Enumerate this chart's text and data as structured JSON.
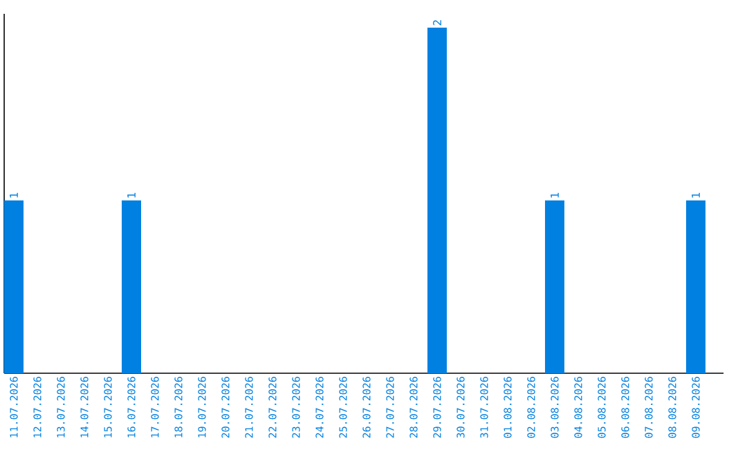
{
  "chart_data": {
    "type": "bar",
    "categories": [
      "11.07.2026",
      "12.07.2026",
      "13.07.2026",
      "14.07.2026",
      "15.07.2026",
      "16.07.2026",
      "17.07.2026",
      "18.07.2026",
      "19.07.2026",
      "20.07.2026",
      "21.07.2026",
      "22.07.2026",
      "23.07.2026",
      "24.07.2026",
      "25.07.2026",
      "26.07.2026",
      "27.07.2026",
      "28.07.2026",
      "29.07.2026",
      "30.07.2026",
      "31.07.2026",
      "01.08.2026",
      "02.08.2026",
      "03.08.2026",
      "04.08.2026",
      "05.08.2026",
      "06.08.2026",
      "07.08.2026",
      "08.08.2026",
      "09.08.2026"
    ],
    "values": [
      1,
      0,
      0,
      0,
      0,
      1,
      0,
      0,
      0,
      0,
      0,
      0,
      0,
      0,
      0,
      0,
      0,
      0,
      2,
      0,
      0,
      0,
      0,
      1,
      0,
      0,
      0,
      0,
      0,
      1
    ],
    "value_labels": [
      "1",
      null,
      null,
      null,
      null,
      "1",
      null,
      null,
      null,
      null,
      null,
      null,
      null,
      null,
      null,
      null,
      null,
      null,
      "2",
      null,
      null,
      null,
      null,
      "1",
      null,
      null,
      null,
      null,
      null,
      "1"
    ],
    "color": "#0080e0",
    "grid": false,
    "tick_labels": "x"
  }
}
